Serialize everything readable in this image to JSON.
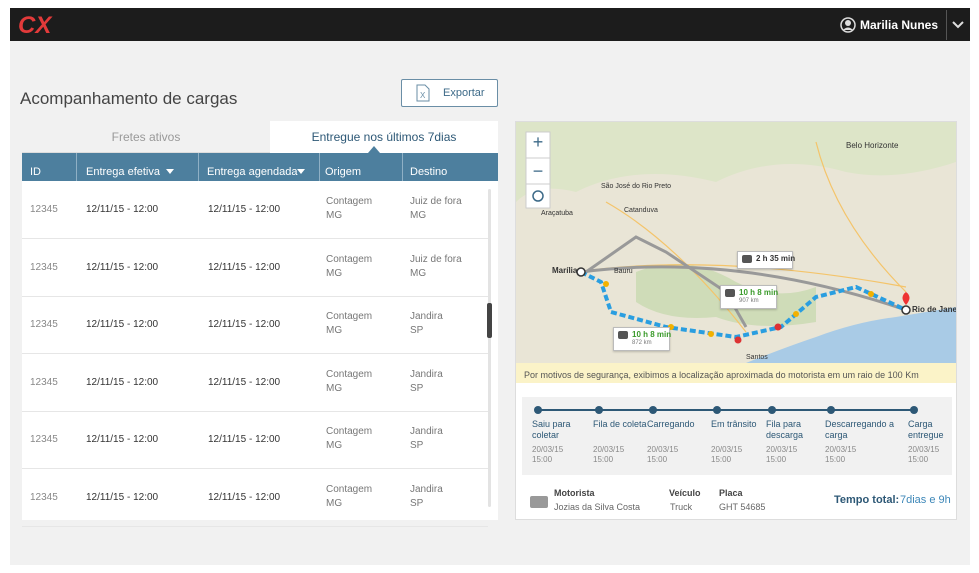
{
  "header": {
    "logo": "CX",
    "user": "Marilia Nunes"
  },
  "page": {
    "title": "Acompanhamento de cargas",
    "export_button": "Exportar"
  },
  "tabs": [
    "Fretes ativos",
    "Entregue nos últimos 7dias"
  ],
  "table": {
    "columns": [
      "ID",
      "Entrega efetiva",
      "Entrega agendada",
      "Origem",
      "Destino"
    ],
    "rows": [
      {
        "id": "12345",
        "delivered": "12/11/15 - 12:00",
        "scheduled": "12/11/15 - 12:00",
        "origin": {
          "city": "Contagem",
          "state": "MG"
        },
        "destination": {
          "city": "Juiz de fora",
          "state": "MG"
        }
      },
      {
        "id": "12345",
        "delivered": "12/11/15 - 12:00",
        "scheduled": "12/11/15 - 12:00",
        "origin": {
          "city": "Contagem",
          "state": "MG"
        },
        "destination": {
          "city": "Juiz de fora",
          "state": "MG"
        }
      },
      {
        "id": "12345",
        "delivered": "12/11/15 - 12:00",
        "scheduled": "12/11/15 - 12:00",
        "origin": {
          "city": "Contagem",
          "state": "MG"
        },
        "destination": {
          "city": "Jandira",
          "state": "SP"
        }
      },
      {
        "id": "12345",
        "delivered": "12/11/15 - 12:00",
        "scheduled": "12/11/15 - 12:00",
        "origin": {
          "city": "Contagem",
          "state": "MG"
        },
        "destination": {
          "city": "Jandira",
          "state": "SP"
        }
      },
      {
        "id": "12345",
        "delivered": "12/11/15 - 12:00",
        "scheduled": "12/11/15 - 12:00",
        "origin": {
          "city": "Contagem",
          "state": "MG"
        },
        "destination": {
          "city": "Jandira",
          "state": "SP"
        }
      },
      {
        "id": "12345",
        "delivered": "12/11/15 - 12:00",
        "scheduled": "12/11/15 - 12:00",
        "origin": {
          "city": "Contagem",
          "state": "MG"
        },
        "destination": {
          "city": "Jandira",
          "state": "SP"
        }
      }
    ]
  },
  "map": {
    "labels": [
      "Belo Horizonte",
      "São José do Rio Preto",
      "Araçatuba",
      "Catanduva",
      "Marília",
      "Bauru",
      "Rio de Janeiro",
      "Santos"
    ],
    "flight": "2 h 35 min",
    "routes": [
      {
        "time": "10 h 8 min",
        "distance": "907 km"
      },
      {
        "time": "10 h 8 min",
        "distance": "872 km"
      }
    ],
    "notice": "Por motivos de segurança,  exibimos a localização aproximada do motorista em um raio de 100 Km"
  },
  "timeline": [
    {
      "label": "Saiu para coletar",
      "date": "20/03/15",
      "time": "15:00"
    },
    {
      "label": "Fila de coleta",
      "date": "20/03/15",
      "time": "15:00"
    },
    {
      "label": "Carregando",
      "date": "20/03/15",
      "time": "15:00"
    },
    {
      "label": "Em trânsito",
      "date": "20/03/15",
      "time": "15:00"
    },
    {
      "label": "Fila para descarga",
      "date": "20/03/15",
      "time": "15:00"
    },
    {
      "label": "Descarregando a carga",
      "date": "20/03/15",
      "time": "15:00"
    },
    {
      "label": "Carga entregue",
      "date": "20/03/15",
      "time": "15:00"
    }
  ],
  "details": {
    "driver_label": "Motorista",
    "driver": "Jozias da Silva Costa",
    "vehicle_label": "Veículo",
    "vehicle": "Truck",
    "plate_label": "Placa",
    "plate": "GHT 54685",
    "total_label": "Tempo total:",
    "total": "7dias e 9h"
  }
}
